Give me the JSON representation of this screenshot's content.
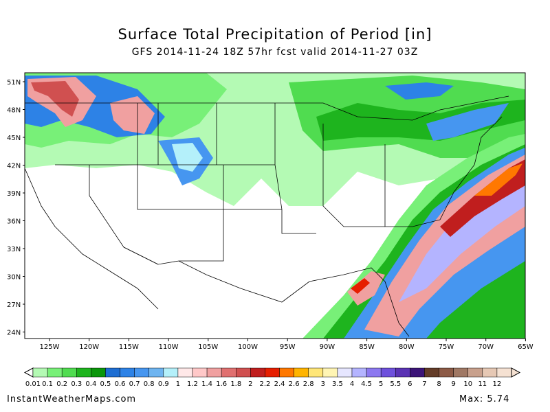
{
  "title": "Surface Total Precipitation of Period [in]",
  "subtitle": "GFS 2014-11-24 18Z 57hr fcst valid 2014-11-27 03Z",
  "lat_labels": [
    "51N",
    "48N",
    "45N",
    "42N",
    "39N",
    "36N",
    "33N",
    "30N",
    "27N",
    "24N"
  ],
  "lon_labels": [
    "125W",
    "120W",
    "115W",
    "110W",
    "105W",
    "100W",
    "95W",
    "90W",
    "85W",
    "80W",
    "75W",
    "70W",
    "65W"
  ],
  "colorbar": {
    "labels": [
      "0.01",
      "0.1",
      "0.2",
      "0.3",
      "0.4",
      "0.5",
      "0.6",
      "0.7",
      "0.8",
      "0.9",
      "1",
      "1.2",
      "1.4",
      "1.6",
      "1.8",
      "2",
      "2.2",
      "2.4",
      "2.6",
      "2.8",
      "3",
      "3.5",
      "4",
      "4.5",
      "5",
      "5.5",
      "6",
      "7",
      "8",
      "9",
      "10",
      "11",
      "12"
    ],
    "colors": [
      "#b4fab4",
      "#78f078",
      "#50dc50",
      "#1eb41e",
      "#0a960a",
      "#1e6ed2",
      "#2d82e6",
      "#4696f0",
      "#6eb4f0",
      "#b4f0fa",
      "#ffe8e8",
      "#ffc8c8",
      "#f0a0a0",
      "#e07070",
      "#d05050",
      "#c01e1e",
      "#e61e00",
      "#ff7800",
      "#ffb400",
      "#ffe678",
      "#fff5b4",
      "#e6e6ff",
      "#b4b4ff",
      "#8c78f0",
      "#6e50dc",
      "#5a32b4",
      "#3c1478",
      "#643c28",
      "#8c5a46",
      "#a07864",
      "#c8a08c",
      "#e6c8b4",
      "#f5e1d2"
    ]
  },
  "footer_left": "InstantWeatherMaps.com",
  "max_label": "Max:",
  "max_value": "5.74",
  "colors": {
    "light_green": "#b4fab4",
    "green": "#50dc50",
    "dark_green": "#0a960a",
    "blue": "#2d82e6",
    "pink": "#f0a0a0",
    "red": "#c01e1e",
    "orange": "#ff7800",
    "purple": "#8c78f0"
  }
}
